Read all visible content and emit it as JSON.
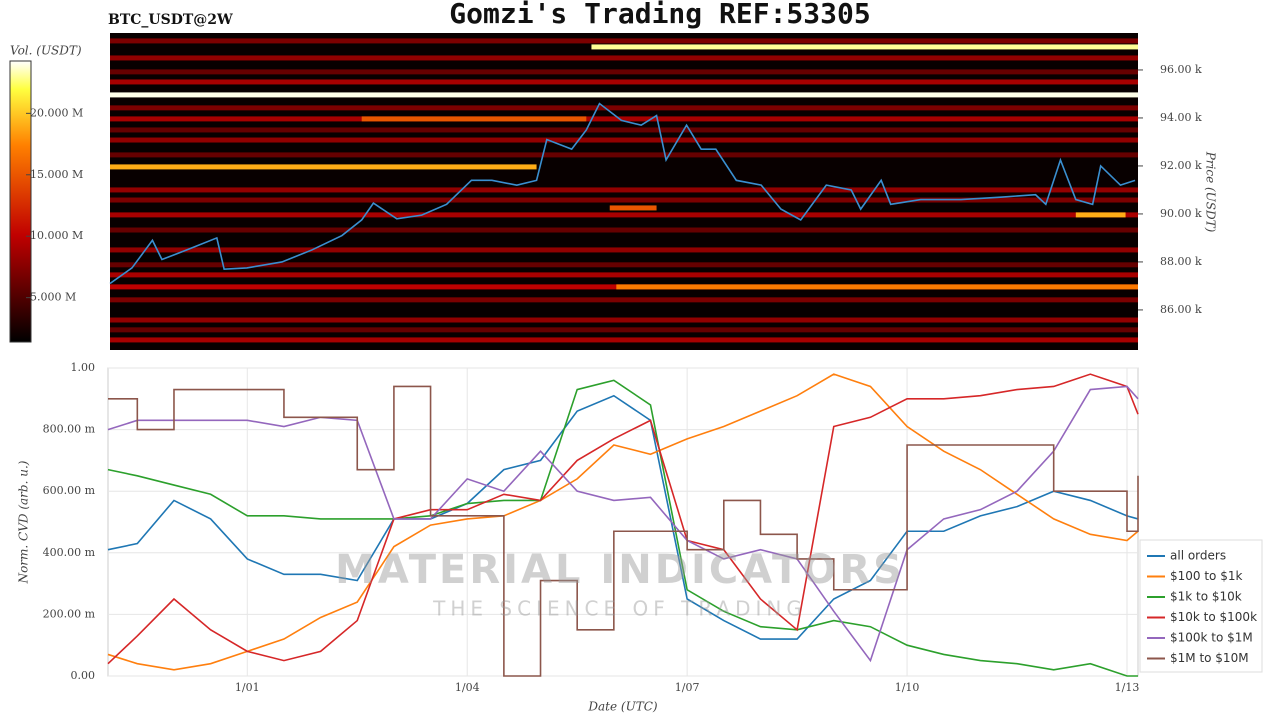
{
  "chart_data": [
    {
      "type": "heatmap",
      "title": "Gomzi's Trading REF:53305",
      "subtitle": "BTC_USDT@2W",
      "y_label": "Price (USDT)",
      "colorbar_label": "Vol. (USDT)",
      "xlim": [
        -1.9,
        12.15
      ],
      "ylim": [
        84.33,
        97.54
      ],
      "yticks": [
        {
          "value": 86,
          "label": "86.00 k"
        },
        {
          "value": 88,
          "label": "88.00 k"
        },
        {
          "value": 90,
          "label": "90.00 k"
        },
        {
          "value": 92,
          "label": "92.00 k"
        },
        {
          "value": 94,
          "label": "94.00 k"
        },
        {
          "value": 96,
          "label": "96.00 k"
        }
      ],
      "clim": [
        1.39,
        24.26
      ],
      "cticks": [
        {
          "value": 5,
          "label": "5.000 M"
        },
        {
          "value": 10,
          "label": "10.000 M"
        },
        {
          "value": 15,
          "label": "15.000 M"
        },
        {
          "value": 20,
          "label": "20.000 M"
        }
      ],
      "levels": [
        {
          "price": 97.21,
          "volume": 7,
          "from": -1.9,
          "to": 12.15
        },
        {
          "price": 96.96,
          "volume": 23,
          "from": 4.68,
          "to": 12.15
        },
        {
          "price": 96.5,
          "volume": 8,
          "from": -1.9,
          "to": 12.15
        },
        {
          "price": 95.92,
          "volume": 6,
          "from": -1.9,
          "to": 12.15
        },
        {
          "price": 95.5,
          "volume": 9,
          "from": -1.9,
          "to": 12.15
        },
        {
          "price": 94.96,
          "volume": 24,
          "from": -1.9,
          "to": 12.15
        },
        {
          "price": 94.42,
          "volume": 7,
          "from": -1.9,
          "to": 12.15
        },
        {
          "price": 93.96,
          "volume": 9,
          "from": -1.9,
          "to": 12.15
        },
        {
          "price": 93.96,
          "volume": 15,
          "from": 1.54,
          "to": 4.61
        },
        {
          "price": 93.5,
          "volume": 6,
          "from": -1.9,
          "to": 12.15
        },
        {
          "price": 93.08,
          "volume": 8,
          "from": -1.9,
          "to": 12.15
        },
        {
          "price": 92.46,
          "volume": 6,
          "from": -1.9,
          "to": 12.15
        },
        {
          "price": 91.96,
          "volume": 19,
          "from": -1.9,
          "to": 3.93
        },
        {
          "price": 91.0,
          "volume": 8,
          "from": -1.9,
          "to": 12.15
        },
        {
          "price": 90.58,
          "volume": 7,
          "from": -1.9,
          "to": 12.15
        },
        {
          "price": 90.25,
          "volume": 15,
          "from": 4.93,
          "to": 5.57
        },
        {
          "price": 89.96,
          "volume": 9,
          "from": -1.9,
          "to": 12.15
        },
        {
          "price": 89.96,
          "volume": 19,
          "from": 11.3,
          "to": 11.98
        },
        {
          "price": 89.33,
          "volume": 6,
          "from": -1.9,
          "to": 12.15
        },
        {
          "price": 88.5,
          "volume": 8,
          "from": -1.9,
          "to": 12.15
        },
        {
          "price": 87.88,
          "volume": 6,
          "from": -1.9,
          "to": 12.15
        },
        {
          "price": 87.46,
          "volume": 9,
          "from": -1.9,
          "to": 12.15
        },
        {
          "price": 86.96,
          "volume": 10,
          "from": -1.9,
          "to": 12.15
        },
        {
          "price": 86.96,
          "volume": 17,
          "from": 5.02,
          "to": 12.15
        },
        {
          "price": 86.42,
          "volume": 7,
          "from": -1.9,
          "to": 12.15
        },
        {
          "price": 85.58,
          "volume": 8,
          "from": -1.9,
          "to": 12.15
        },
        {
          "price": 85.17,
          "volume": 6,
          "from": -1.9,
          "to": 12.15
        },
        {
          "price": 84.75,
          "volume": 9,
          "from": -1.9,
          "to": 12.15
        }
      ],
      "price": {
        "color": "#3a8fd0",
        "x": [
          -1.9,
          -1.6,
          -1.32,
          -1.19,
          -0.85,
          -0.44,
          -0.34,
          -0.03,
          0.45,
          0.86,
          1.27,
          1.54,
          1.7,
          2.02,
          2.36,
          2.7,
          3.04,
          3.32,
          3.66,
          3.93,
          4.07,
          4.41,
          4.61,
          4.79,
          5.09,
          5.36,
          5.57,
          5.7,
          5.98,
          6.18,
          6.38,
          6.66,
          7.0,
          7.27,
          7.54,
          7.89,
          8.23,
          8.36,
          8.64,
          8.77,
          9.18,
          9.73,
          10.27,
          10.75,
          10.89,
          11.09,
          11.3,
          11.53,
          11.64,
          11.91,
          12.11
        ],
        "values": [
          87.1,
          87.75,
          88.9,
          88.1,
          88.5,
          89.0,
          87.7,
          87.75,
          88.0,
          88.5,
          89.1,
          89.75,
          90.45,
          89.8,
          89.95,
          90.4,
          91.4,
          91.4,
          91.2,
          91.4,
          93.1,
          92.7,
          93.5,
          94.6,
          93.9,
          93.7,
          94.1,
          92.25,
          93.7,
          92.7,
          92.7,
          91.4,
          91.2,
          90.2,
          89.75,
          91.2,
          91.0,
          90.2,
          91.4,
          90.4,
          90.6,
          90.6,
          90.7,
          90.8,
          90.4,
          92.25,
          90.6,
          90.4,
          92.0,
          91.2,
          91.4
        ]
      }
    },
    {
      "type": "line",
      "x_label": "Date (UTC)",
      "y_label": "Norm. CVD (arb. u.)",
      "grid": true,
      "legend": "lower-right",
      "xlim": [
        -1.9,
        12.15
      ],
      "xticks": [
        {
          "value": 0,
          "label": "1/01"
        },
        {
          "value": 3,
          "label": "1/04"
        },
        {
          "value": 6,
          "label": "1/07"
        },
        {
          "value": 9,
          "label": "1/10"
        },
        {
          "value": 12,
          "label": "1/13"
        }
      ],
      "ylim": [
        0,
        1
      ],
      "yticks": [
        {
          "value": 0,
          "label": "0.00"
        },
        {
          "value": 0.2,
          "label": "200.00 m"
        },
        {
          "value": 0.4,
          "label": "400.00 m"
        },
        {
          "value": 0.6,
          "label": "600.00 m"
        },
        {
          "value": 0.8,
          "label": "800.00 m"
        },
        {
          "value": 1,
          "label": "1.00"
        }
      ],
      "x": [
        -1.9,
        -1.5,
        -1,
        -0.5,
        0,
        0.5,
        1,
        1.5,
        2,
        2.5,
        3,
        3.5,
        4,
        4.5,
        5,
        5.5,
        6,
        6.5,
        7,
        7.5,
        8,
        8.5,
        9,
        9.5,
        10,
        10.5,
        11,
        11.5,
        12,
        12.15
      ],
      "series": [
        {
          "name": "all orders",
          "color": "#1f77b4",
          "values": [
            0.41,
            0.43,
            0.57,
            0.51,
            0.38,
            0.33,
            0.33,
            0.31,
            0.51,
            0.51,
            0.56,
            0.67,
            0.7,
            0.86,
            0.91,
            0.83,
            0.25,
            0.18,
            0.12,
            0.12,
            0.25,
            0.31,
            0.47,
            0.47,
            0.52,
            0.55,
            0.6,
            0.57,
            0.52,
            0.51
          ]
        },
        {
          "name": "$100 to $1k",
          "color": "#ff7f0e",
          "values": [
            0.07,
            0.04,
            0.02,
            0.04,
            0.08,
            0.12,
            0.19,
            0.24,
            0.42,
            0.49,
            0.51,
            0.52,
            0.57,
            0.64,
            0.75,
            0.72,
            0.77,
            0.81,
            0.86,
            0.91,
            0.98,
            0.94,
            0.81,
            0.73,
            0.67,
            0.59,
            0.51,
            0.46,
            0.44,
            0.47
          ]
        },
        {
          "name": "$1k to $10k",
          "color": "#2ca02c",
          "values": [
            0.67,
            0.65,
            0.62,
            0.59,
            0.52,
            0.52,
            0.51,
            0.51,
            0.51,
            0.52,
            0.56,
            0.57,
            0.57,
            0.93,
            0.96,
            0.88,
            0.28,
            0.21,
            0.16,
            0.15,
            0.18,
            0.16,
            0.1,
            0.07,
            0.05,
            0.04,
            0.02,
            0.04,
            0.0,
            0.0
          ]
        },
        {
          "name": "$10k to $100k",
          "color": "#d62728",
          "values": [
            0.04,
            0.13,
            0.25,
            0.15,
            0.08,
            0.05,
            0.08,
            0.18,
            0.51,
            0.54,
            0.54,
            0.59,
            0.57,
            0.7,
            0.77,
            0.83,
            0.44,
            0.41,
            0.25,
            0.15,
            0.81,
            0.84,
            0.9,
            0.9,
            0.91,
            0.93,
            0.94,
            0.98,
            0.94,
            0.85
          ]
        },
        {
          "name": "$100k to $1M",
          "color": "#9467bd",
          "values": [
            0.8,
            0.83,
            0.83,
            0.83,
            0.83,
            0.81,
            0.84,
            0.83,
            0.51,
            0.51,
            0.64,
            0.6,
            0.73,
            0.6,
            0.57,
            0.58,
            0.44,
            0.38,
            0.41,
            0.38,
            0.21,
            0.05,
            0.41,
            0.51,
            0.54,
            0.6,
            0.73,
            0.93,
            0.94,
            0.9
          ]
        },
        {
          "name": "$1M to $10M",
          "color": "#8c564b",
          "step": true,
          "values": [
            0.9,
            0.8,
            0.93,
            0.93,
            0.93,
            0.84,
            0.84,
            0.67,
            0.94,
            0.52,
            0.52,
            0.0,
            0.31,
            0.15,
            0.47,
            0.47,
            0.41,
            0.57,
            0.46,
            0.38,
            0.28,
            0.28,
            0.75,
            0.75,
            0.75,
            0.75,
            0.6,
            0.6,
            0.47,
            0.65
          ]
        }
      ]
    }
  ],
  "watermark": {
    "title": "MATERIAL INDICATORS",
    "subtitle": "THE SCIENCE OF TRADING"
  }
}
